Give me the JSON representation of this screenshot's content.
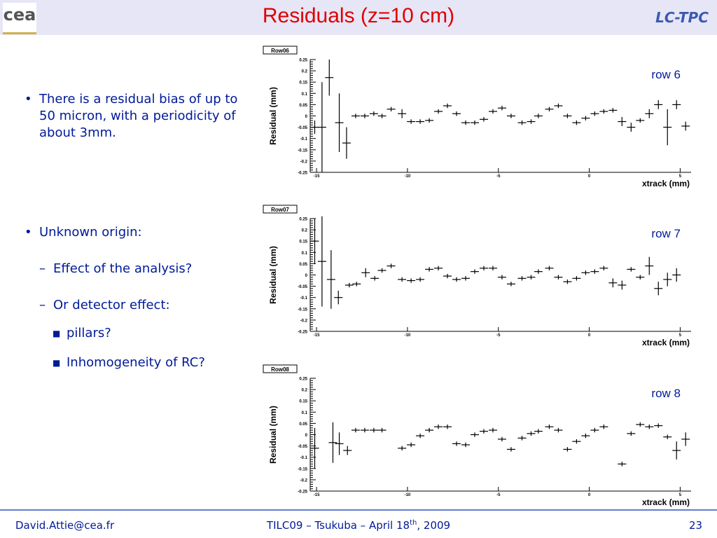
{
  "header": {
    "title": "Residuals (z=10 cm)",
    "logo_left": "cea",
    "logo_right": "LC-TPC"
  },
  "body": {
    "bullet_1": "There is a residual bias of up to 50 micron, with a periodicity of about 3mm.",
    "bullet_2": "Unknown origin:",
    "sub_1": "Effect of the analysis?",
    "sub_2": "Or detector effect:",
    "subsub_1": "pillars?",
    "subsub_2": "Inhomogeneity of RC?"
  },
  "footer": {
    "email": "David.Attie@cea.fr",
    "event": "TILC09 – Tsukuba – April 18",
    "event_sup": "th",
    "event_end": ", 2009",
    "page": "23"
  },
  "chart_data": [
    {
      "type": "errorbar",
      "title": "Row06",
      "annotation": "row 6",
      "xlabel": "xtrack (mm)",
      "ylabel": "Residual (mm)",
      "color": "#000000",
      "xlim": [
        -15.35,
        5.6
      ],
      "ylim": [
        -0.25,
        0.25
      ],
      "xticks": [
        -15,
        -10,
        -5,
        0,
        5
      ],
      "yticks": [
        -0.25,
        -0.2,
        -0.15,
        -0.1,
        -0.05,
        0,
        0.05,
        0.1,
        0.15,
        0.2,
        0.25
      ],
      "x": [
        -15.1,
        -14.7,
        -14.3,
        -13.75,
        -13.35,
        -12.85,
        -12.35,
        -11.85,
        -11.4,
        -10.9,
        -10.3,
        -9.8,
        -9.3,
        -8.8,
        -8.3,
        -7.8,
        -7.3,
        -6.8,
        -6.3,
        -5.8,
        -5.3,
        -4.8,
        -4.3,
        -3.7,
        -3.2,
        -2.8,
        -2.2,
        -1.7,
        -1.2,
        -0.7,
        -0.2,
        0.3,
        0.8,
        1.3,
        1.8,
        2.3,
        2.8,
        3.3,
        3.8,
        4.3,
        4.8,
        5.3
      ],
      "values": [
        -0.05,
        -0.05,
        0.17,
        -0.03,
        -0.12,
        0.0,
        0.0,
        0.01,
        0.0,
        0.03,
        0.01,
        -0.025,
        -0.025,
        -0.02,
        0.02,
        0.045,
        0.01,
        -0.03,
        -0.03,
        -0.015,
        0.02,
        0.035,
        0.0,
        -0.03,
        -0.025,
        0.0,
        0.03,
        0.045,
        0.0,
        -0.03,
        -0.01,
        0.01,
        0.02,
        0.025,
        -0.025,
        -0.05,
        -0.02,
        0.01,
        0.05,
        -0.05,
        0.05,
        -0.045
      ],
      "errors": [
        0.03,
        0.2,
        0.08,
        0.13,
        0.07,
        0.01,
        0.01,
        0.01,
        0.01,
        0.01,
        0.02,
        0.01,
        0.01,
        0.01,
        0.01,
        0.01,
        0.01,
        0.01,
        0.01,
        0.01,
        0.01,
        0.01,
        0.01,
        0.01,
        0.01,
        0.01,
        0.01,
        0.01,
        0.01,
        0.01,
        0.01,
        0.01,
        0.01,
        0.01,
        0.02,
        0.02,
        0.01,
        0.02,
        0.02,
        0.08,
        0.02,
        0.02
      ]
    },
    {
      "type": "errorbar",
      "title": "Row07",
      "annotation": "row 7",
      "xlabel": "xtrack (mm)",
      "ylabel": "Residual (mm)",
      "color": "#000000",
      "xlim": [
        -15.35,
        5.6
      ],
      "ylim": [
        -0.25,
        0.25
      ],
      "xticks": [
        -15,
        -10,
        -5,
        0,
        5
      ],
      "yticks": [
        -0.25,
        -0.2,
        -0.15,
        -0.1,
        -0.05,
        0,
        0.05,
        0.1,
        0.15,
        0.2,
        0.25
      ],
      "x": [
        -15.1,
        -14.7,
        -14.2,
        -13.8,
        -13.2,
        -12.8,
        -12.3,
        -11.8,
        -11.4,
        -10.9,
        -10.3,
        -9.8,
        -9.3,
        -8.8,
        -8.3,
        -7.8,
        -7.3,
        -6.8,
        -6.3,
        -5.8,
        -5.3,
        -4.8,
        -4.3,
        -3.7,
        -3.2,
        -2.8,
        -2.2,
        -1.7,
        -1.2,
        -0.7,
        -0.2,
        0.3,
        0.8,
        1.3,
        1.8,
        2.3,
        2.8,
        3.3,
        3.8,
        4.3,
        4.8
      ],
      "values": [
        0.15,
        0.06,
        -0.02,
        -0.1,
        -0.045,
        -0.04,
        0.01,
        -0.015,
        0.02,
        0.04,
        -0.02,
        -0.025,
        -0.02,
        0.025,
        0.03,
        -0.005,
        -0.02,
        -0.015,
        0.015,
        0.03,
        0.03,
        -0.01,
        -0.04,
        -0.015,
        -0.01,
        0.015,
        0.03,
        -0.01,
        -0.03,
        -0.015,
        0.01,
        0.015,
        0.03,
        -0.035,
        -0.045,
        0.025,
        -0.01,
        0.04,
        -0.06,
        -0.02,
        0.0
      ],
      "errors": [
        0.1,
        0.2,
        0.13,
        0.03,
        0.01,
        0.01,
        0.02,
        0.01,
        0.01,
        0.01,
        0.01,
        0.01,
        0.01,
        0.01,
        0.01,
        0.01,
        0.01,
        0.01,
        0.01,
        0.01,
        0.01,
        0.01,
        0.01,
        0.01,
        0.01,
        0.01,
        0.01,
        0.01,
        0.01,
        0.01,
        0.01,
        0.01,
        0.01,
        0.02,
        0.02,
        0.01,
        0.01,
        0.04,
        0.03,
        0.03,
        0.03
      ]
    },
    {
      "type": "errorbar",
      "title": "Row08",
      "annotation": "row 8",
      "xlabel": "xtrack (mm)",
      "ylabel": "Residual (mm)",
      "color": "#000000",
      "xlim": [
        -15.35,
        5.6
      ],
      "ylim": [
        -0.25,
        0.25
      ],
      "xticks": [
        -15,
        -10,
        -5,
        0,
        5
      ],
      "yticks": [
        -0.25,
        -0.2,
        -0.15,
        -0.1,
        -0.05,
        0,
        0.05,
        0.1,
        0.15,
        0.2,
        0.25
      ],
      "x": [
        -15.1,
        -14.1,
        -13.75,
        -13.3,
        -12.85,
        -12.35,
        -11.85,
        -11.4,
        -10.3,
        -9.8,
        -9.3,
        -8.8,
        -8.3,
        -7.8,
        -7.3,
        -6.8,
        -6.3,
        -5.8,
        -5.3,
        -4.8,
        -4.3,
        -3.7,
        -3.2,
        -2.8,
        -2.2,
        -1.7,
        -1.2,
        -0.7,
        -0.2,
        0.3,
        0.8,
        1.8,
        2.3,
        2.8,
        3.3,
        3.8,
        4.3,
        4.8,
        5.3
      ],
      "values": [
        -0.06,
        -0.035,
        -0.04,
        -0.07,
        0.02,
        0.02,
        0.02,
        0.02,
        -0.06,
        -0.045,
        -0.005,
        0.02,
        0.035,
        0.035,
        -0.04,
        -0.045,
        0.0,
        0.015,
        0.02,
        -0.02,
        -0.065,
        -0.015,
        0.005,
        0.015,
        0.035,
        0.02,
        -0.065,
        -0.03,
        -0.005,
        0.02,
        0.035,
        -0.13,
        0.005,
        0.045,
        0.035,
        0.04,
        -0.01,
        -0.07,
        -0.02
      ],
      "errors": [
        0.09,
        0.09,
        0.05,
        0.02,
        0.01,
        0.01,
        0.01,
        0.01,
        0.01,
        0.01,
        0.01,
        0.01,
        0.01,
        0.01,
        0.01,
        0.01,
        0.01,
        0.01,
        0.01,
        0.01,
        0.01,
        0.01,
        0.01,
        0.01,
        0.01,
        0.01,
        0.01,
        0.01,
        0.01,
        0.01,
        0.01,
        0.01,
        0.01,
        0.01,
        0.01,
        0.01,
        0.01,
        0.04,
        0.03
      ]
    }
  ]
}
